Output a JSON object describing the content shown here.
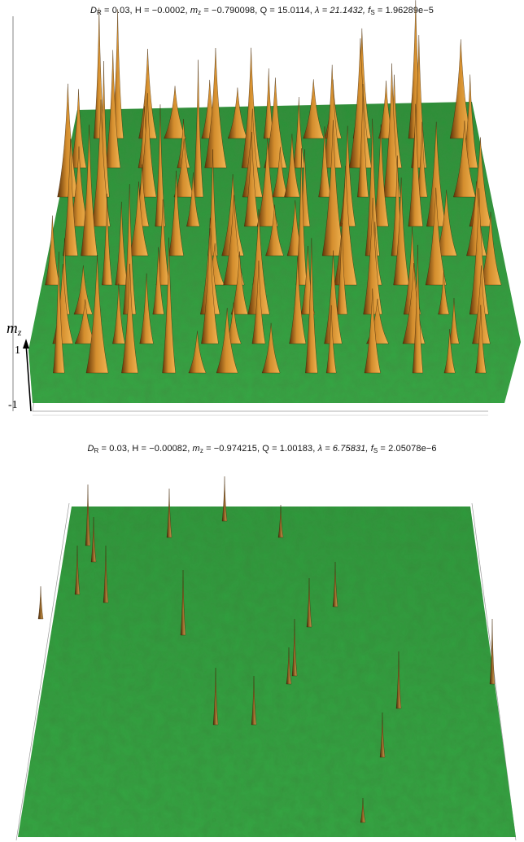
{
  "panels": [
    {
      "id": "top",
      "caption": {
        "d_r_sym": "D",
        "d_r_sub": "R",
        "d_r_val": " = 0.03,  ",
        "h": "H = −0.0002,  ",
        "mz_sym": "m",
        "mz_sub": "z",
        "mz_val": " = −0.790098,  ",
        "q": "Q = 15.0114,  ",
        "lambda": "λ = 21.1432,  ",
        "fs_sym": "f",
        "fs_sub": "S",
        "fs_val": " = 1.96289e−5"
      },
      "axis": {
        "label_sym": "m",
        "label_sub": "z",
        "tick_top": "1",
        "tick_bottom": "-1"
      },
      "peak_density": "many"
    },
    {
      "id": "bottom",
      "caption": {
        "d_r_sym": "D",
        "d_r_sub": "R",
        "d_r_val": " = 0.03,  ",
        "h": "H = −0.00082,  ",
        "mz_sym": "m",
        "mz_sub": "z",
        "mz_val": " = −0.974215,  ",
        "q": "Q = 1.00183,  ",
        "lambda": "λ = 6.75831,  ",
        "fs_sym": "f",
        "fs_sub": "S",
        "fs_val": " = 2.05078e−6"
      },
      "peak_density": "few"
    }
  ],
  "colors": {
    "surface": "#2f9e3f",
    "surface_dark": "#1f7a2c",
    "peak": "#c8862a",
    "peak_dark": "#6b3d10",
    "axis": "#000000"
  }
}
